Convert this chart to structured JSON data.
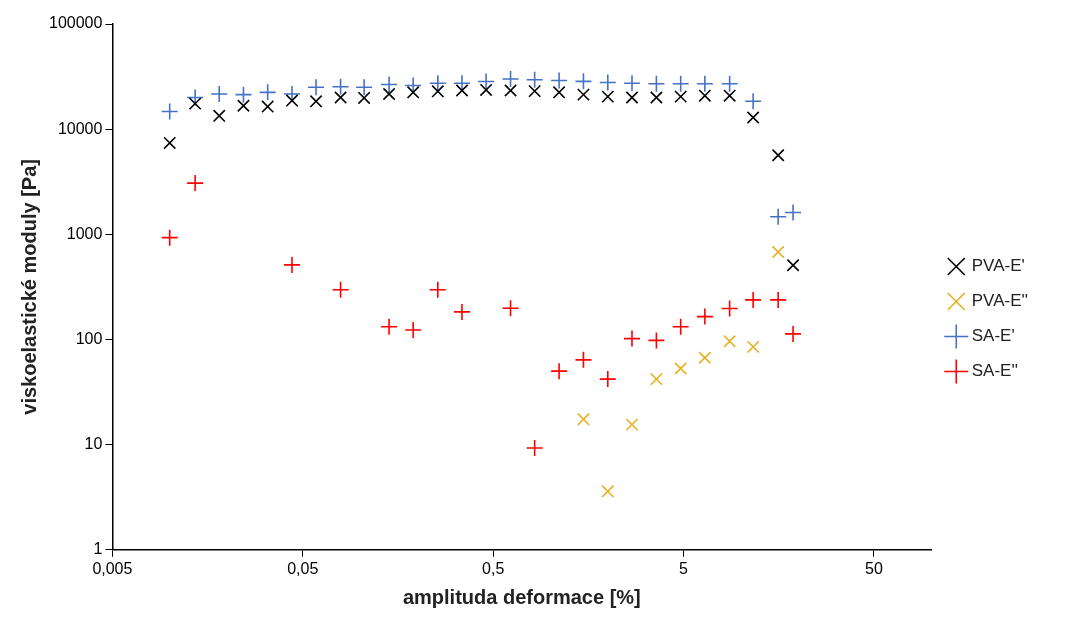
{
  "chart_data": {
    "type": "scatter",
    "xlabel": "amplituda deformace [%]",
    "ylabel": "viskoelastické moduly [Pa]",
    "log": "xy",
    "legend": "right",
    "xlim": [
      0.005,
      100
    ],
    "ylim": [
      1,
      100000
    ],
    "xticks": [
      {
        "value": 0.005,
        "label": "0,005"
      },
      {
        "value": 0.05,
        "label": "0,05"
      },
      {
        "value": 0.5,
        "label": "0,5"
      },
      5,
      50
    ],
    "yticks": [
      1,
      10,
      100,
      1000,
      10000,
      100000
    ],
    "series": [
      {
        "name": "PVA-E'",
        "color": "#000000",
        "marker": "x",
        "x": [
          0.01,
          0.0136,
          0.0182,
          0.0244,
          0.0327,
          0.0439,
          0.0587,
          0.079,
          0.105,
          0.142,
          0.19,
          0.256,
          0.343,
          0.459,
          0.617,
          0.826,
          1.11,
          1.49,
          2.0,
          2.68,
          3.6,
          4.83,
          6.47,
          8.73,
          11.6,
          15.7,
          18.8
        ],
        "values": [
          7400,
          17500,
          13400,
          16700,
          16400,
          18700,
          18400,
          20000,
          19800,
          21600,
          22400,
          22900,
          23300,
          23600,
          23300,
          23000,
          22400,
          21300,
          20400,
          20000,
          20000,
          20400,
          20800,
          20800,
          12900,
          5650,
          508
        ]
      },
      {
        "name": "PVA-E''",
        "color": "#e8b020",
        "marker": "x",
        "x": [
          1.49,
          2.0,
          2.68,
          3.6,
          4.83,
          6.47,
          8.73,
          11.6,
          15.7
        ],
        "values": [
          17.4,
          3.6,
          15.5,
          42,
          53,
          67,
          96,
          85,
          678
        ]
      },
      {
        "name": "SA-E'",
        "color": "#4472c4",
        "marker": "cross",
        "x": [
          0.01,
          0.0136,
          0.0182,
          0.0244,
          0.0327,
          0.0439,
          0.0587,
          0.079,
          0.105,
          0.142,
          0.19,
          0.256,
          0.343,
          0.459,
          0.617,
          0.826,
          1.11,
          1.49,
          2.0,
          2.68,
          3.6,
          4.83,
          6.47,
          8.73,
          11.6,
          15.7,
          18.8
        ],
        "values": [
          14700,
          20000,
          21600,
          21300,
          22400,
          21600,
          25000,
          25300,
          25000,
          26600,
          26000,
          27300,
          27300,
          28400,
          30000,
          29500,
          29000,
          28500,
          27800,
          27300,
          27000,
          27000,
          27000,
          27000,
          18400,
          1470,
          1610
        ]
      },
      {
        "name": "SA-E''",
        "color": "#ff0000",
        "marker": "cross",
        "x": [
          0.01,
          0.0136,
          0.0439,
          0.079,
          0.142,
          0.19,
          0.256,
          0.343,
          0.617,
          0.826,
          1.11,
          1.49,
          2.0,
          2.68,
          3.6,
          4.83,
          6.47,
          8.73,
          11.6,
          15.7,
          18.8
        ],
        "values": [
          930,
          3070,
          512,
          297,
          132,
          123,
          297,
          183,
          198,
          9.3,
          50,
          64,
          42,
          102,
          98,
          132,
          165,
          197,
          238,
          238,
          113
        ]
      }
    ]
  }
}
